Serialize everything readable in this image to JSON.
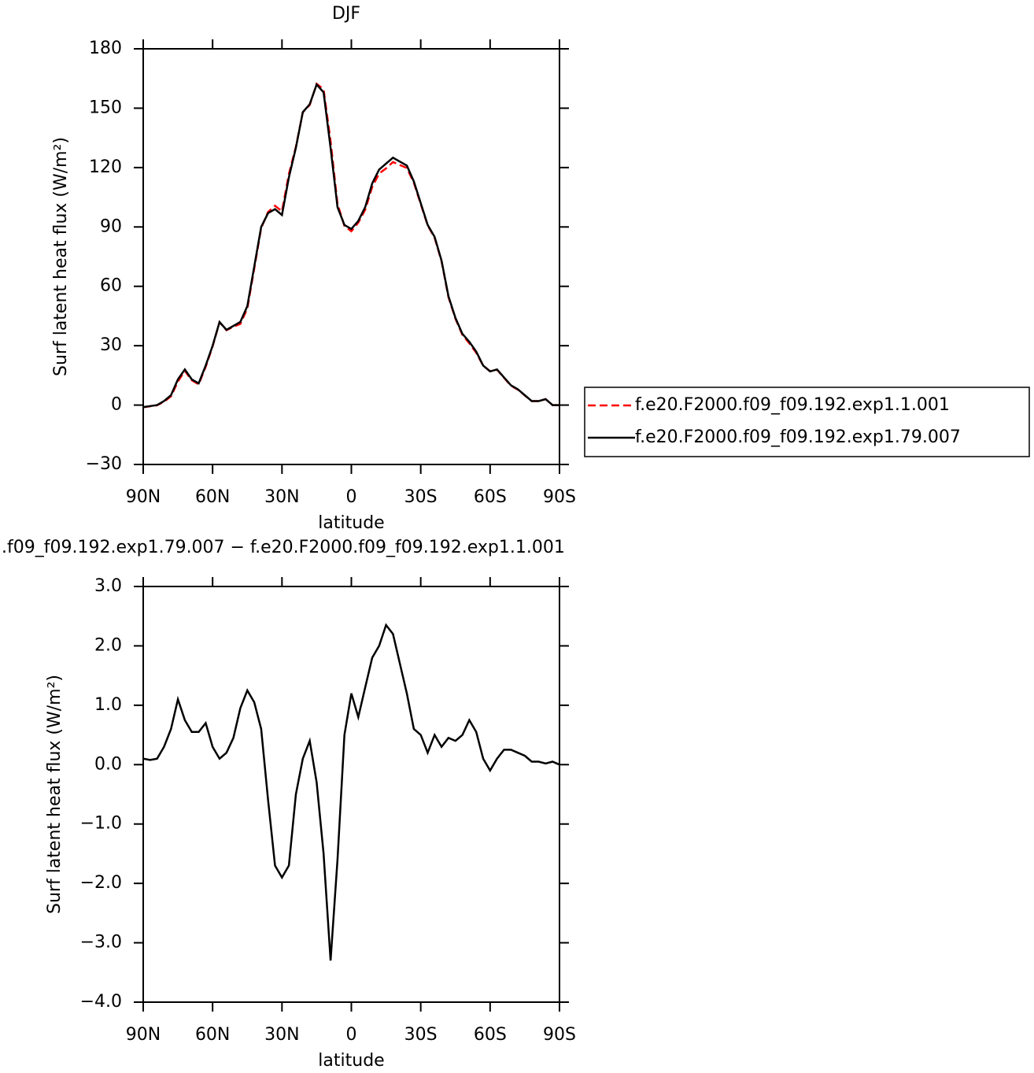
{
  "chart_data": [
    {
      "type": "line",
      "title": "DJF",
      "xlabel": "latitude",
      "ylabel": "Surf latent heat flux (W/m²)",
      "x": [
        90,
        87,
        84,
        81,
        78,
        75,
        72,
        69,
        66,
        63,
        60,
        57,
        54,
        51,
        48,
        45,
        42,
        39,
        36,
        33,
        30,
        27,
        24,
        21,
        18,
        15,
        12,
        9,
        6,
        3,
        0,
        -3,
        -6,
        -9,
        -12,
        -15,
        -18,
        -21,
        -24,
        -27,
        -30,
        -33,
        -36,
        -39,
        -42,
        -45,
        -48,
        -51,
        -54,
        -57,
        -60,
        -63,
        -66,
        -69,
        -72,
        -75,
        -78,
        -81,
        -84,
        -87,
        -90
      ],
      "xlim": [
        90,
        -90
      ],
      "xticks": [
        {
          "value": 90,
          "label": "90N"
        },
        {
          "value": 60,
          "label": "60N"
        },
        {
          "value": 30,
          "label": "30N"
        },
        0,
        {
          "value": -30,
          "label": "30S"
        },
        {
          "value": -60,
          "label": "60S"
        },
        {
          "value": -90,
          "label": "90S"
        }
      ],
      "ylim": [
        -30,
        180
      ],
      "yticks": [
        {
          "value": -30,
          "label": "−30"
        },
        0,
        30,
        60,
        90,
        120,
        150,
        180
      ],
      "legend": "right",
      "series": [
        {
          "name": "f.e20.F2000.f09_f09.192.exp1.1.001",
          "color": "#ff0000",
          "style": "dashed",
          "values": [
            -1.1,
            -0.6,
            -0.1,
            1.7,
            4.4,
            11.9,
            17.3,
            12.5,
            10.5,
            19.3,
            29.7,
            41.9,
            37.8,
            39.6,
            41,
            48.8,
            69,
            89.4,
            97.6,
            100.7,
            97.9,
            116.7,
            130.5,
            147.9,
            151.6,
            162.3,
            159.5,
            133.3,
            101.6,
            90.5,
            87.8,
            92.2,
            98.7,
            110.2,
            117,
            119.6,
            122.8,
            121.3,
            119.8,
            112.4,
            101.5,
            90.8,
            84.5,
            72.7,
            54.5,
            43.6,
            35.5,
            31.2,
            26.4,
            19.9,
            17.1,
            17.9,
            13.8,
            9.8,
            7.8,
            4.9,
            2,
            2,
            3,
            0,
            0
          ]
        },
        {
          "name": "f.e20.F2000.f09_f09.192.exp1.79.007",
          "color": "#000000",
          "style": "solid",
          "values": [
            -1,
            -0.5,
            0,
            2,
            5,
            13,
            18,
            13,
            11,
            20,
            30,
            42,
            38,
            40,
            42,
            50,
            70,
            90,
            97,
            99,
            96,
            115,
            130,
            148,
            152,
            162,
            158,
            130,
            100,
            91,
            89,
            93,
            100,
            112,
            119,
            122,
            125,
            123,
            121,
            113,
            102,
            91,
            85,
            73,
            55,
            44,
            36,
            32,
            27,
            20,
            17,
            18,
            14,
            10,
            8,
            5,
            2,
            2,
            3,
            0,
            0
          ]
        }
      ]
    },
    {
      "type": "line",
      "title": ".f09_f09.192.exp1.79.007 − f.e20.F2000.f09_f09.192.exp1.1.001",
      "xlabel": "latitude",
      "ylabel": "Surf latent heat flux (W/m²)",
      "x": [
        90,
        87,
        84,
        81,
        78,
        75,
        72,
        69,
        66,
        63,
        60,
        57,
        54,
        51,
        48,
        45,
        42,
        39,
        36,
        33,
        30,
        27,
        24,
        21,
        18,
        15,
        12,
        9,
        6,
        3,
        0,
        -3,
        -6,
        -9,
        -12,
        -15,
        -18,
        -21,
        -24,
        -27,
        -30,
        -33,
        -36,
        -39,
        -42,
        -45,
        -48,
        -51,
        -54,
        -57,
        -60,
        -63,
        -66,
        -69,
        -72,
        -75,
        -78,
        -81,
        -84,
        -87,
        -90
      ],
      "xlim": [
        90,
        -90
      ],
      "xticks": [
        {
          "value": 90,
          "label": "90N"
        },
        {
          "value": 60,
          "label": "60N"
        },
        {
          "value": 30,
          "label": "30N"
        },
        0,
        {
          "value": -30,
          "label": "30S"
        },
        {
          "value": -60,
          "label": "60S"
        },
        {
          "value": -90,
          "label": "90S"
        }
      ],
      "ylim": [
        -4,
        3
      ],
      "yticks": [
        {
          "value": -4,
          "label": "−4.0"
        },
        {
          "value": -3,
          "label": "−3.0"
        },
        {
          "value": -2,
          "label": "−2.0"
        },
        {
          "value": -1,
          "label": "−1.0"
        },
        {
          "value": 0,
          "label": "0.0"
        },
        {
          "value": 1,
          "label": "1.0"
        },
        {
          "value": 2,
          "label": "2.0"
        },
        {
          "value": 3,
          "label": "3.0"
        }
      ],
      "series": [
        {
          "color": "#000000",
          "style": "solid",
          "values": [
            0.1,
            0.08,
            0.1,
            0.3,
            0.6,
            1.1,
            0.75,
            0.55,
            0.55,
            0.7,
            0.3,
            0.1,
            0.2,
            0.45,
            0.95,
            1.25,
            1.05,
            0.6,
            -0.6,
            -1.7,
            -1.9,
            -1.7,
            -0.5,
            0.1,
            0.4,
            -0.3,
            -1.5,
            -3.3,
            -1.6,
            0.5,
            1.2,
            0.8,
            1.3,
            1.8,
            2.0,
            2.35,
            2.2,
            1.7,
            1.2,
            0.6,
            0.5,
            0.2,
            0.5,
            0.3,
            0.45,
            0.4,
            0.5,
            0.75,
            0.55,
            0.1,
            -0.1,
            0.1,
            0.25,
            0.25,
            0.2,
            0.15,
            0.05,
            0.05,
            0.02,
            0.05,
            0
          ]
        }
      ]
    }
  ]
}
